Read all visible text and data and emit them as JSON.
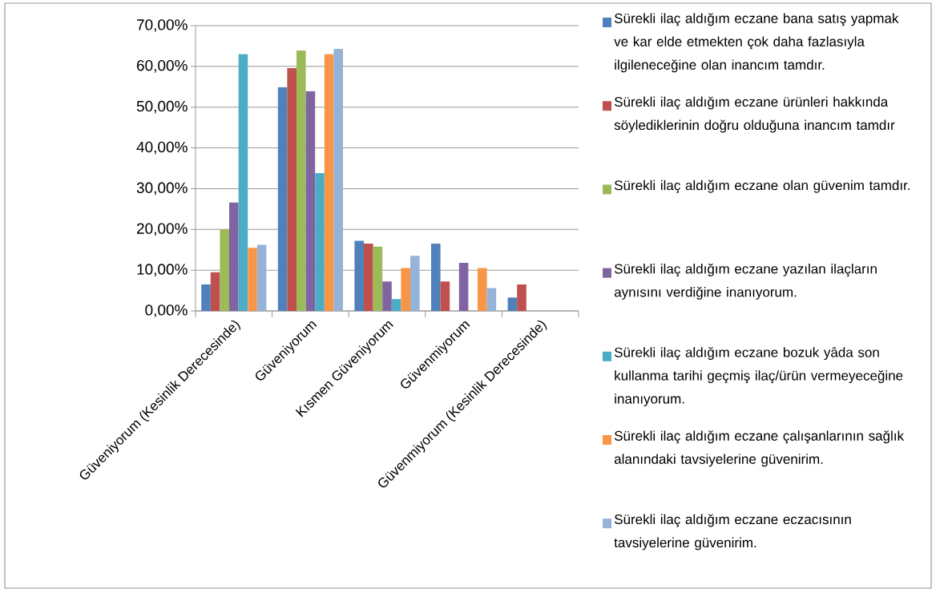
{
  "chart_data": {
    "type": "bar",
    "categories": [
      "Güveniyorum (Kesinlik Derecesinde)",
      "Güveniyorum",
      "Kısmen Güveniyorum",
      "Güvenmiyorum",
      "Güvenmiyorum (Kesinlik Derecesinde)"
    ],
    "series": [
      {
        "name": "Sürekli ilaç aldığım eczane bana satış yapmak ve kar elde etmekten çok daha fazlasıyla ilgileneceğine olan inancım tamdır.",
        "color": "#4f81bd",
        "values": [
          6.5,
          54.9,
          17.2,
          16.5,
          3.3
        ]
      },
      {
        "name": "Sürekli ilaç aldığım eczane ürünleri hakkında söylediklerinin doğru olduğuna inancım tamdır",
        "color": "#c0504d",
        "values": [
          9.5,
          59.6,
          16.5,
          7.2,
          6.5
        ]
      },
      {
        "name": "Sürekli ilaç aldığım eczane olan güvenim tamdır.",
        "color": "#9bbb59",
        "values": [
          20,
          63.9,
          15.8,
          0,
          0
        ]
      },
      {
        "name": "Sürekli ilaç aldığım eczane yazılan ilaçların aynısını verdiğine inanıyorum.",
        "color": "#8064a2",
        "values": [
          26.6,
          53.9,
          7.2,
          11.8,
          0
        ]
      },
      {
        "name": "Sürekli ilaç aldığım eczane bozuk yâda son kullanma tarihi geçmiş ilaç/ürün vermeyeceğine inanıyorum.",
        "color": "#4bacc6",
        "values": [
          63,
          33.8,
          2.9,
          0,
          0
        ]
      },
      {
        "name": "Sürekli ilaç aldığım eczane çalışanlarının sağlık alanındaki tavsiyelerine güvenirim.",
        "color": "#f79646",
        "values": [
          15.5,
          63,
          10.5,
          10.5,
          0
        ]
      },
      {
        "name": "Sürekli ilaç aldığım eczane eczacısının tavsiyelerine güvenirim.",
        "color": "#95b3d7",
        "values": [
          16.2,
          64.3,
          13.5,
          5.6,
          0
        ]
      }
    ],
    "ylim": [
      0,
      70
    ],
    "yticks": [
      {
        "value": 0,
        "label": "0,00%"
      },
      {
        "value": 10,
        "label": "10,00%"
      },
      {
        "value": 20,
        "label": "20,00%"
      },
      {
        "value": 30,
        "label": "30,00%"
      },
      {
        "value": 40,
        "label": "40,00%"
      },
      {
        "value": 50,
        "label": "50,00%"
      },
      {
        "value": 60,
        "label": "60,00%"
      },
      {
        "value": 70,
        "label": "70,00%"
      }
    ],
    "grid": "y",
    "legend": "right"
  }
}
